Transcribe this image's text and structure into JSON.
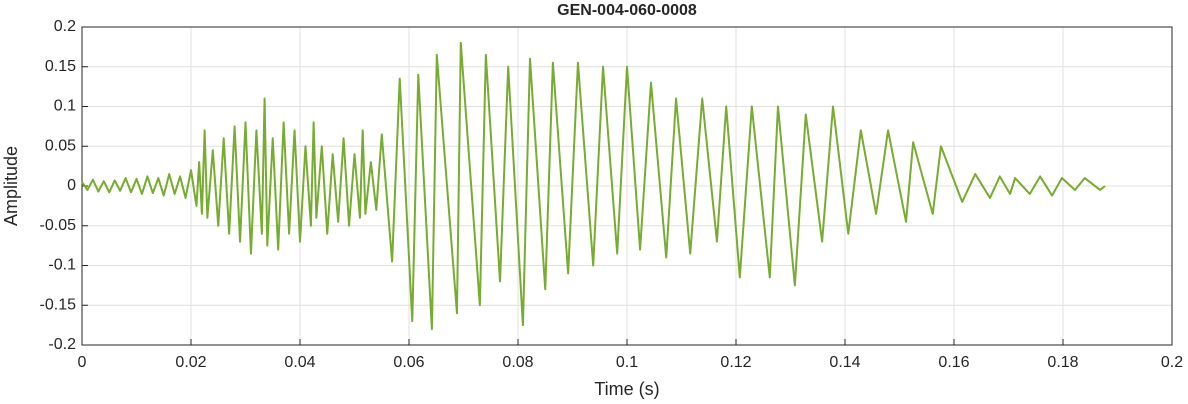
{
  "chart_data": {
    "type": "line",
    "title": "GEN-004-060-0008",
    "xlabel": "Time (s)",
    "ylabel": "Amplitude",
    "x": [
      0.0,
      0.001,
      0.002,
      0.003,
      0.004,
      0.005,
      0.006,
      0.007,
      0.008,
      0.009,
      0.01,
      0.011,
      0.012,
      0.013,
      0.014,
      0.015,
      0.016,
      0.017,
      0.018,
      0.019,
      0.02,
      0.021,
      0.0215,
      0.022,
      0.0225,
      0.023,
      0.024,
      0.025,
      0.026,
      0.027,
      0.028,
      0.029,
      0.03,
      0.031,
      0.032,
      0.033,
      0.0335,
      0.034,
      0.035,
      0.036,
      0.037,
      0.038,
      0.039,
      0.04,
      0.041,
      0.042,
      0.0425,
      0.043,
      0.044,
      0.045,
      0.046,
      0.047,
      0.048,
      0.049,
      0.05,
      0.051,
      0.0515,
      0.052,
      0.053,
      0.054,
      0.055,
      0.0569,
      0.0583,
      0.0606,
      0.0617,
      0.0642,
      0.0651,
      0.0688,
      0.0695,
      0.073,
      0.0741,
      0.0767,
      0.0782,
      0.0809,
      0.0822,
      0.085,
      0.0864,
      0.0892,
      0.091,
      0.0938,
      0.0956,
      0.0982,
      0.1,
      0.1024,
      0.1044,
      0.1072,
      0.109,
      0.1116,
      0.1138,
      0.1165,
      0.1182,
      0.1207,
      0.1229,
      0.1262,
      0.1277,
      0.1308,
      0.1328,
      0.1358,
      0.1378,
      0.1406,
      0.1429,
      0.1457,
      0.1479,
      0.1512,
      0.1525,
      0.1561,
      0.1576,
      0.1615,
      0.1639,
      0.1666,
      0.1684,
      0.1703,
      0.1712,
      0.1739,
      0.1758,
      0.178,
      0.1798,
      0.1822,
      0.184,
      0.1868,
      0.1877
    ],
    "series": [
      {
        "color": "#77ac30",
        "values": [
          0.005,
          -0.005,
          0.008,
          -0.007,
          0.006,
          -0.008,
          0.007,
          -0.006,
          0.01,
          -0.008,
          0.009,
          -0.01,
          0.012,
          -0.009,
          0.01,
          -0.012,
          0.015,
          -0.01,
          0.012,
          -0.015,
          0.02,
          -0.025,
          0.03,
          -0.035,
          0.07,
          -0.04,
          0.045,
          -0.05,
          0.06,
          -0.06,
          0.075,
          -0.07,
          0.08,
          -0.085,
          0.07,
          -0.06,
          0.11,
          -0.075,
          0.06,
          -0.08,
          0.08,
          -0.06,
          0.07,
          -0.07,
          0.05,
          -0.05,
          0.08,
          -0.04,
          0.05,
          -0.06,
          0.04,
          -0.045,
          0.06,
          -0.05,
          0.04,
          -0.04,
          0.07,
          -0.035,
          0.03,
          -0.03,
          0.065,
          -0.095,
          0.135,
          -0.17,
          0.14,
          -0.18,
          0.165,
          -0.16,
          0.18,
          -0.15,
          0.165,
          -0.12,
          0.15,
          -0.175,
          0.16,
          -0.13,
          0.155,
          -0.11,
          0.155,
          -0.1,
          0.15,
          -0.085,
          0.15,
          -0.08,
          0.13,
          -0.09,
          0.11,
          -0.085,
          0.11,
          -0.07,
          0.1,
          -0.115,
          0.1,
          -0.115,
          0.1,
          -0.125,
          0.09,
          -0.07,
          0.1,
          -0.06,
          0.07,
          -0.035,
          0.07,
          -0.045,
          0.055,
          -0.035,
          0.05,
          -0.02,
          0.015,
          -0.015,
          0.012,
          -0.01,
          0.01,
          -0.01,
          0.012,
          -0.012,
          0.01,
          -0.005,
          0.01,
          -0.005,
          0
        ]
      }
    ],
    "xlim": [
      0,
      0.2
    ],
    "xticks": [
      0,
      0.02,
      0.04,
      0.06,
      0.08,
      0.1,
      0.12,
      0.14,
      0.16,
      0.18,
      0.2
    ],
    "ylim": [
      -0.2,
      0.2
    ],
    "yticks": [
      -0.2,
      -0.15,
      -0.1,
      -0.05,
      0,
      0.05,
      0.1,
      0.15,
      0.2
    ],
    "grid": true
  }
}
